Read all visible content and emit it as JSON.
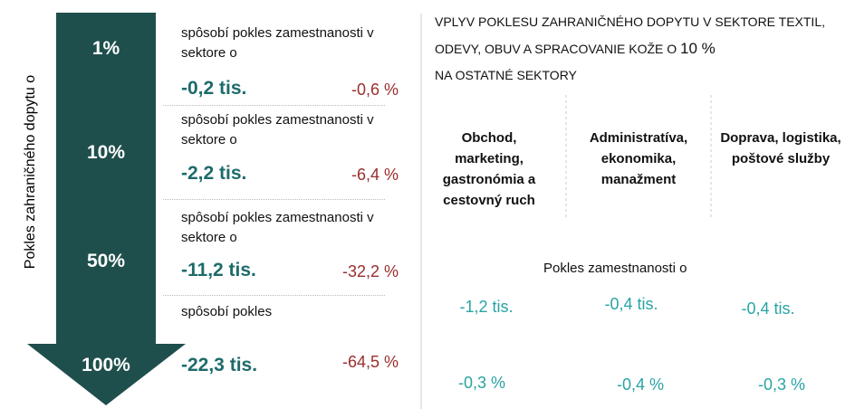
{
  "side_label": "Pokles zahraničného dopytu o",
  "rows": [
    {
      "level": "1%",
      "description": "spôsobí pokles zamestnanosti v sektore o",
      "employment": "-0,2 tis.",
      "percent": "-0,6 %"
    },
    {
      "level": "10%",
      "description": "spôsobí pokles zamestnanosti v sektore o",
      "employment": "-2,2 tis.",
      "percent": "-6,4 %"
    },
    {
      "level": "50%",
      "description": "spôsobí pokles zamestnanosti v sektore o",
      "employment": "-11,2 tis.",
      "percent": "-32,2 %"
    },
    {
      "level": "100%",
      "description": "spôsobí pokles",
      "employment": "-22,3 tis.",
      "percent": "-64,5 %"
    }
  ],
  "panel": {
    "title_start": "VPLYV POKLESU ZAHRANIČNÉHO DOPYTU V SEKTORE TEXTIL, ODEVY, OBUV A SPRACOVANIE KOŽE O",
    "title_highlight": "10 %",
    "title_end": "NA OSTATNÉ SEKTORY",
    "subtitle": "Pokles zamestnanosti o",
    "sectors": [
      {
        "name": "Obchod, marketing, gastronómia a cestovný ruch",
        "employment": "-1,2 tis.",
        "percent": "-0,3 %"
      },
      {
        "name": "Administratíva, ekonomika, manažment",
        "employment": "-0,4 tis.",
        "percent": "-0,4 %"
      },
      {
        "name": "Doprava, logistika, poštové služby",
        "employment": "-0,4 tis.",
        "percent": "-0,3 %"
      }
    ]
  }
}
